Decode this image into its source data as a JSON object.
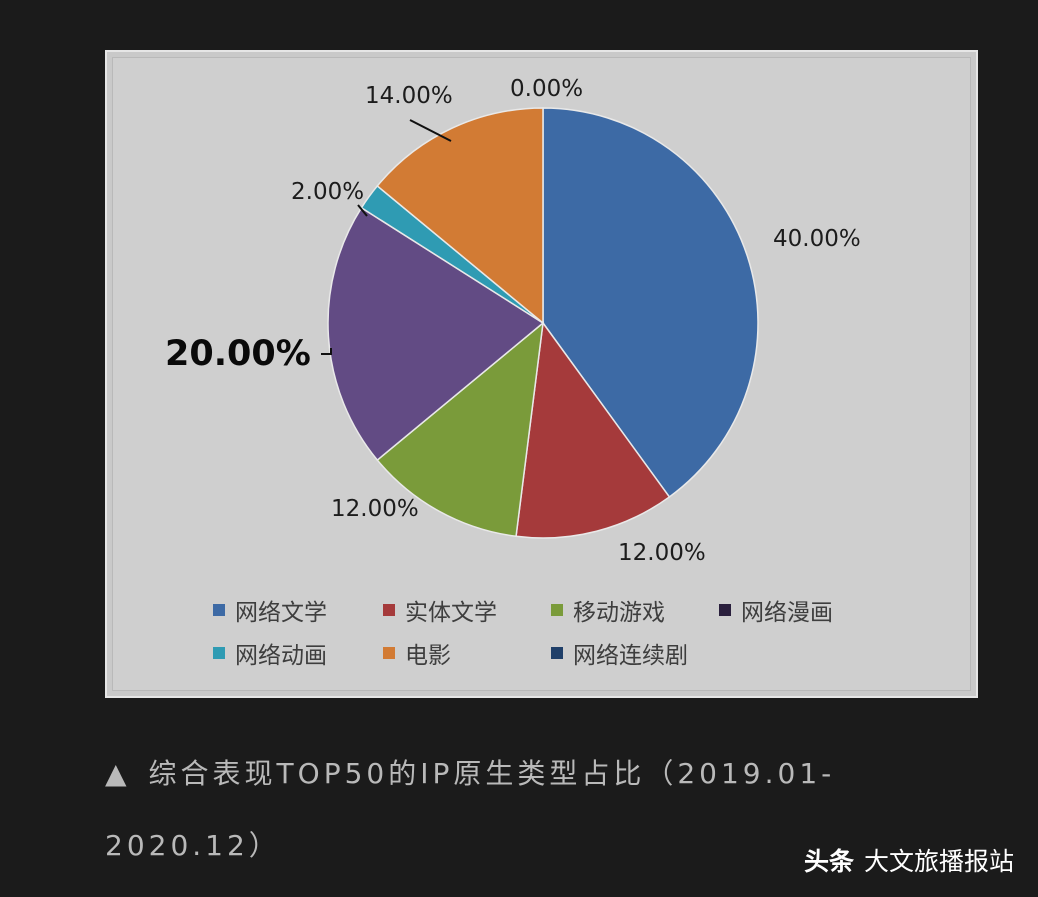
{
  "chart_data": {
    "type": "pie",
    "categories": [
      "网络文学",
      "实体文学",
      "移动游戏",
      "网络漫画",
      "网络动画",
      "电影",
      "网络连续剧"
    ],
    "values": [
      40,
      12,
      12,
      20,
      2,
      14,
      0
    ],
    "data_labels": [
      "40.00%",
      "12.00%",
      "12.00%",
      "20.00%",
      "2.00%",
      "14.00%",
      "0.00%"
    ],
    "colors": [
      "#3d6aa5",
      "#a53a3b",
      "#7a9b3a",
      "#624b84",
      "#2f9bb3",
      "#d27b34",
      "#1f3f69"
    ],
    "legend_colors": [
      "#3d6aa5",
      "#a53a3b",
      "#7a9b3a",
      "#2a1f3d",
      "#2f9bb3",
      "#d27b34",
      "#1f3f69"
    ],
    "legend_position": "bottom",
    "title": "",
    "highlighted_label": "20.00%"
  },
  "caption": {
    "icon": "▲",
    "text": "综合表现TOP50的IP原生类型占比（2019.01-2020.12）"
  },
  "watermark": {
    "logo": "头条",
    "text": "大文旅播报站"
  }
}
